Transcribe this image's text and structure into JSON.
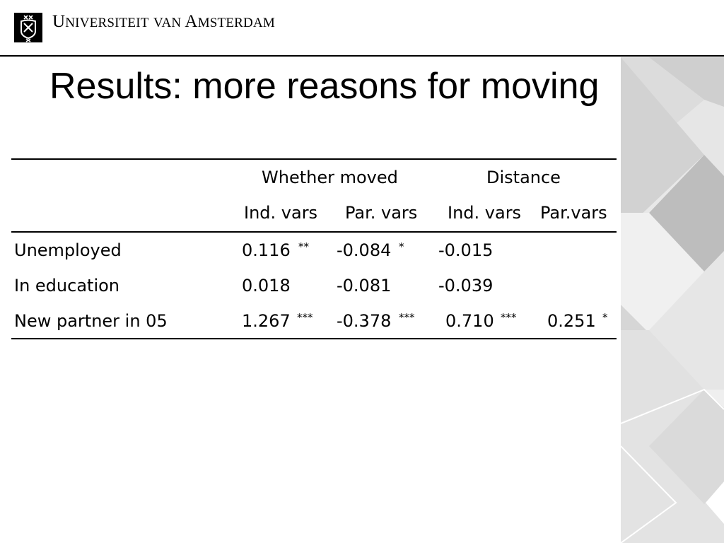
{
  "header": {
    "university_name": "Universiteit van Amsterdam",
    "logo_icon": "uva-crest-icon"
  },
  "slide": {
    "title": "Results: more reasons for moving"
  },
  "table": {
    "group_headers": [
      "Whether moved",
      "Distance"
    ],
    "column_headers": [
      "Ind. vars",
      "Par. vars",
      "Ind. vars",
      "Par.vars"
    ],
    "rows": [
      {
        "label": "Unemployed",
        "cells": [
          {
            "value": "0.116",
            "sig": "**"
          },
          {
            "value": "-0.084",
            "sig": "*"
          },
          {
            "value": "-0.015",
            "sig": ""
          },
          {
            "value": "",
            "sig": ""
          }
        ]
      },
      {
        "label": "In education",
        "cells": [
          {
            "value": "0.018",
            "sig": ""
          },
          {
            "value": "-0.081",
            "sig": ""
          },
          {
            "value": "-0.039",
            "sig": ""
          },
          {
            "value": "",
            "sig": ""
          }
        ]
      },
      {
        "label": "New partner in 05",
        "cells": [
          {
            "value": "1.267",
            "sig": "***"
          },
          {
            "value": "-0.378",
            "sig": "***"
          },
          {
            "value": "0.710",
            "sig": "***"
          },
          {
            "value": "0.251",
            "sig": "*"
          }
        ]
      }
    ]
  },
  "colors": {
    "text": "#000000",
    "background": "#ffffff",
    "decoration_light": "#e4e4e4",
    "decoration_dark": "#c2c2c2"
  }
}
